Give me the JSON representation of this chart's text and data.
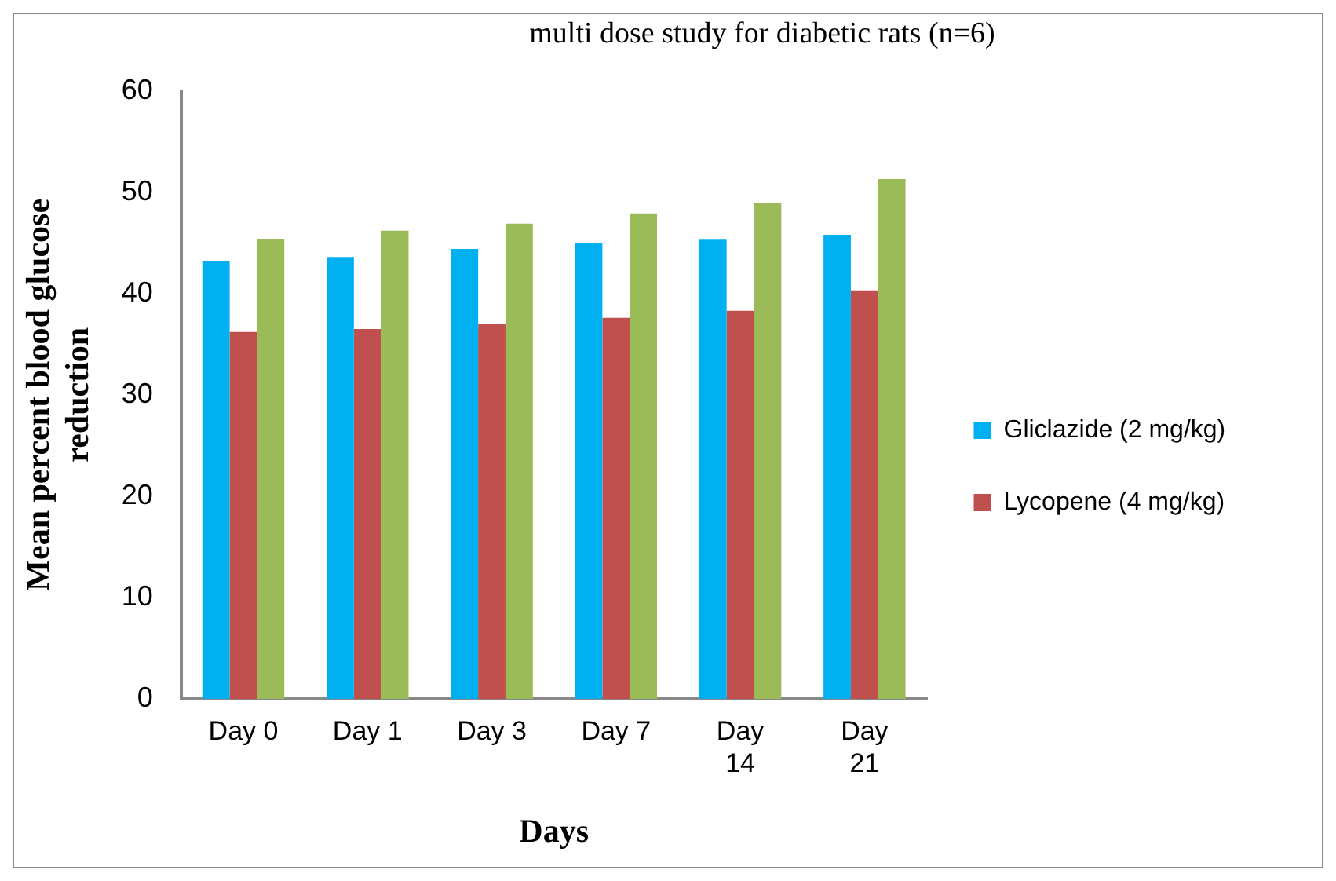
{
  "chart_data": {
    "type": "bar",
    "title": "multi dose study for diabetic rats (n=6)",
    "xlabel": "Days",
    "ylabel": "Mean percent blood glucose reduction",
    "categories": [
      "Day 0",
      "Day 1",
      "Day 3",
      "Day 7",
      "Day 14",
      "Day 21"
    ],
    "series": [
      {
        "name": "Gliclazide (2 mg/kg)",
        "color": "#00b0f0",
        "values": [
          43.2,
          43.6,
          44.4,
          45.0,
          45.3,
          45.8
        ]
      },
      {
        "name": "Lycopene (4 mg/kg)",
        "color": "#c0504d",
        "values": [
          36.2,
          36.5,
          37.0,
          37.6,
          38.3,
          40.3
        ]
      },
      {
        "color": "#9bbb59",
        "values": [
          45.4,
          46.2,
          46.9,
          47.9,
          48.9,
          51.3
        ]
      }
    ],
    "ylim": [
      0,
      60
    ],
    "yticks": [
      0,
      10,
      20,
      30,
      40,
      50,
      60
    ],
    "grid": false,
    "legend": "right"
  }
}
